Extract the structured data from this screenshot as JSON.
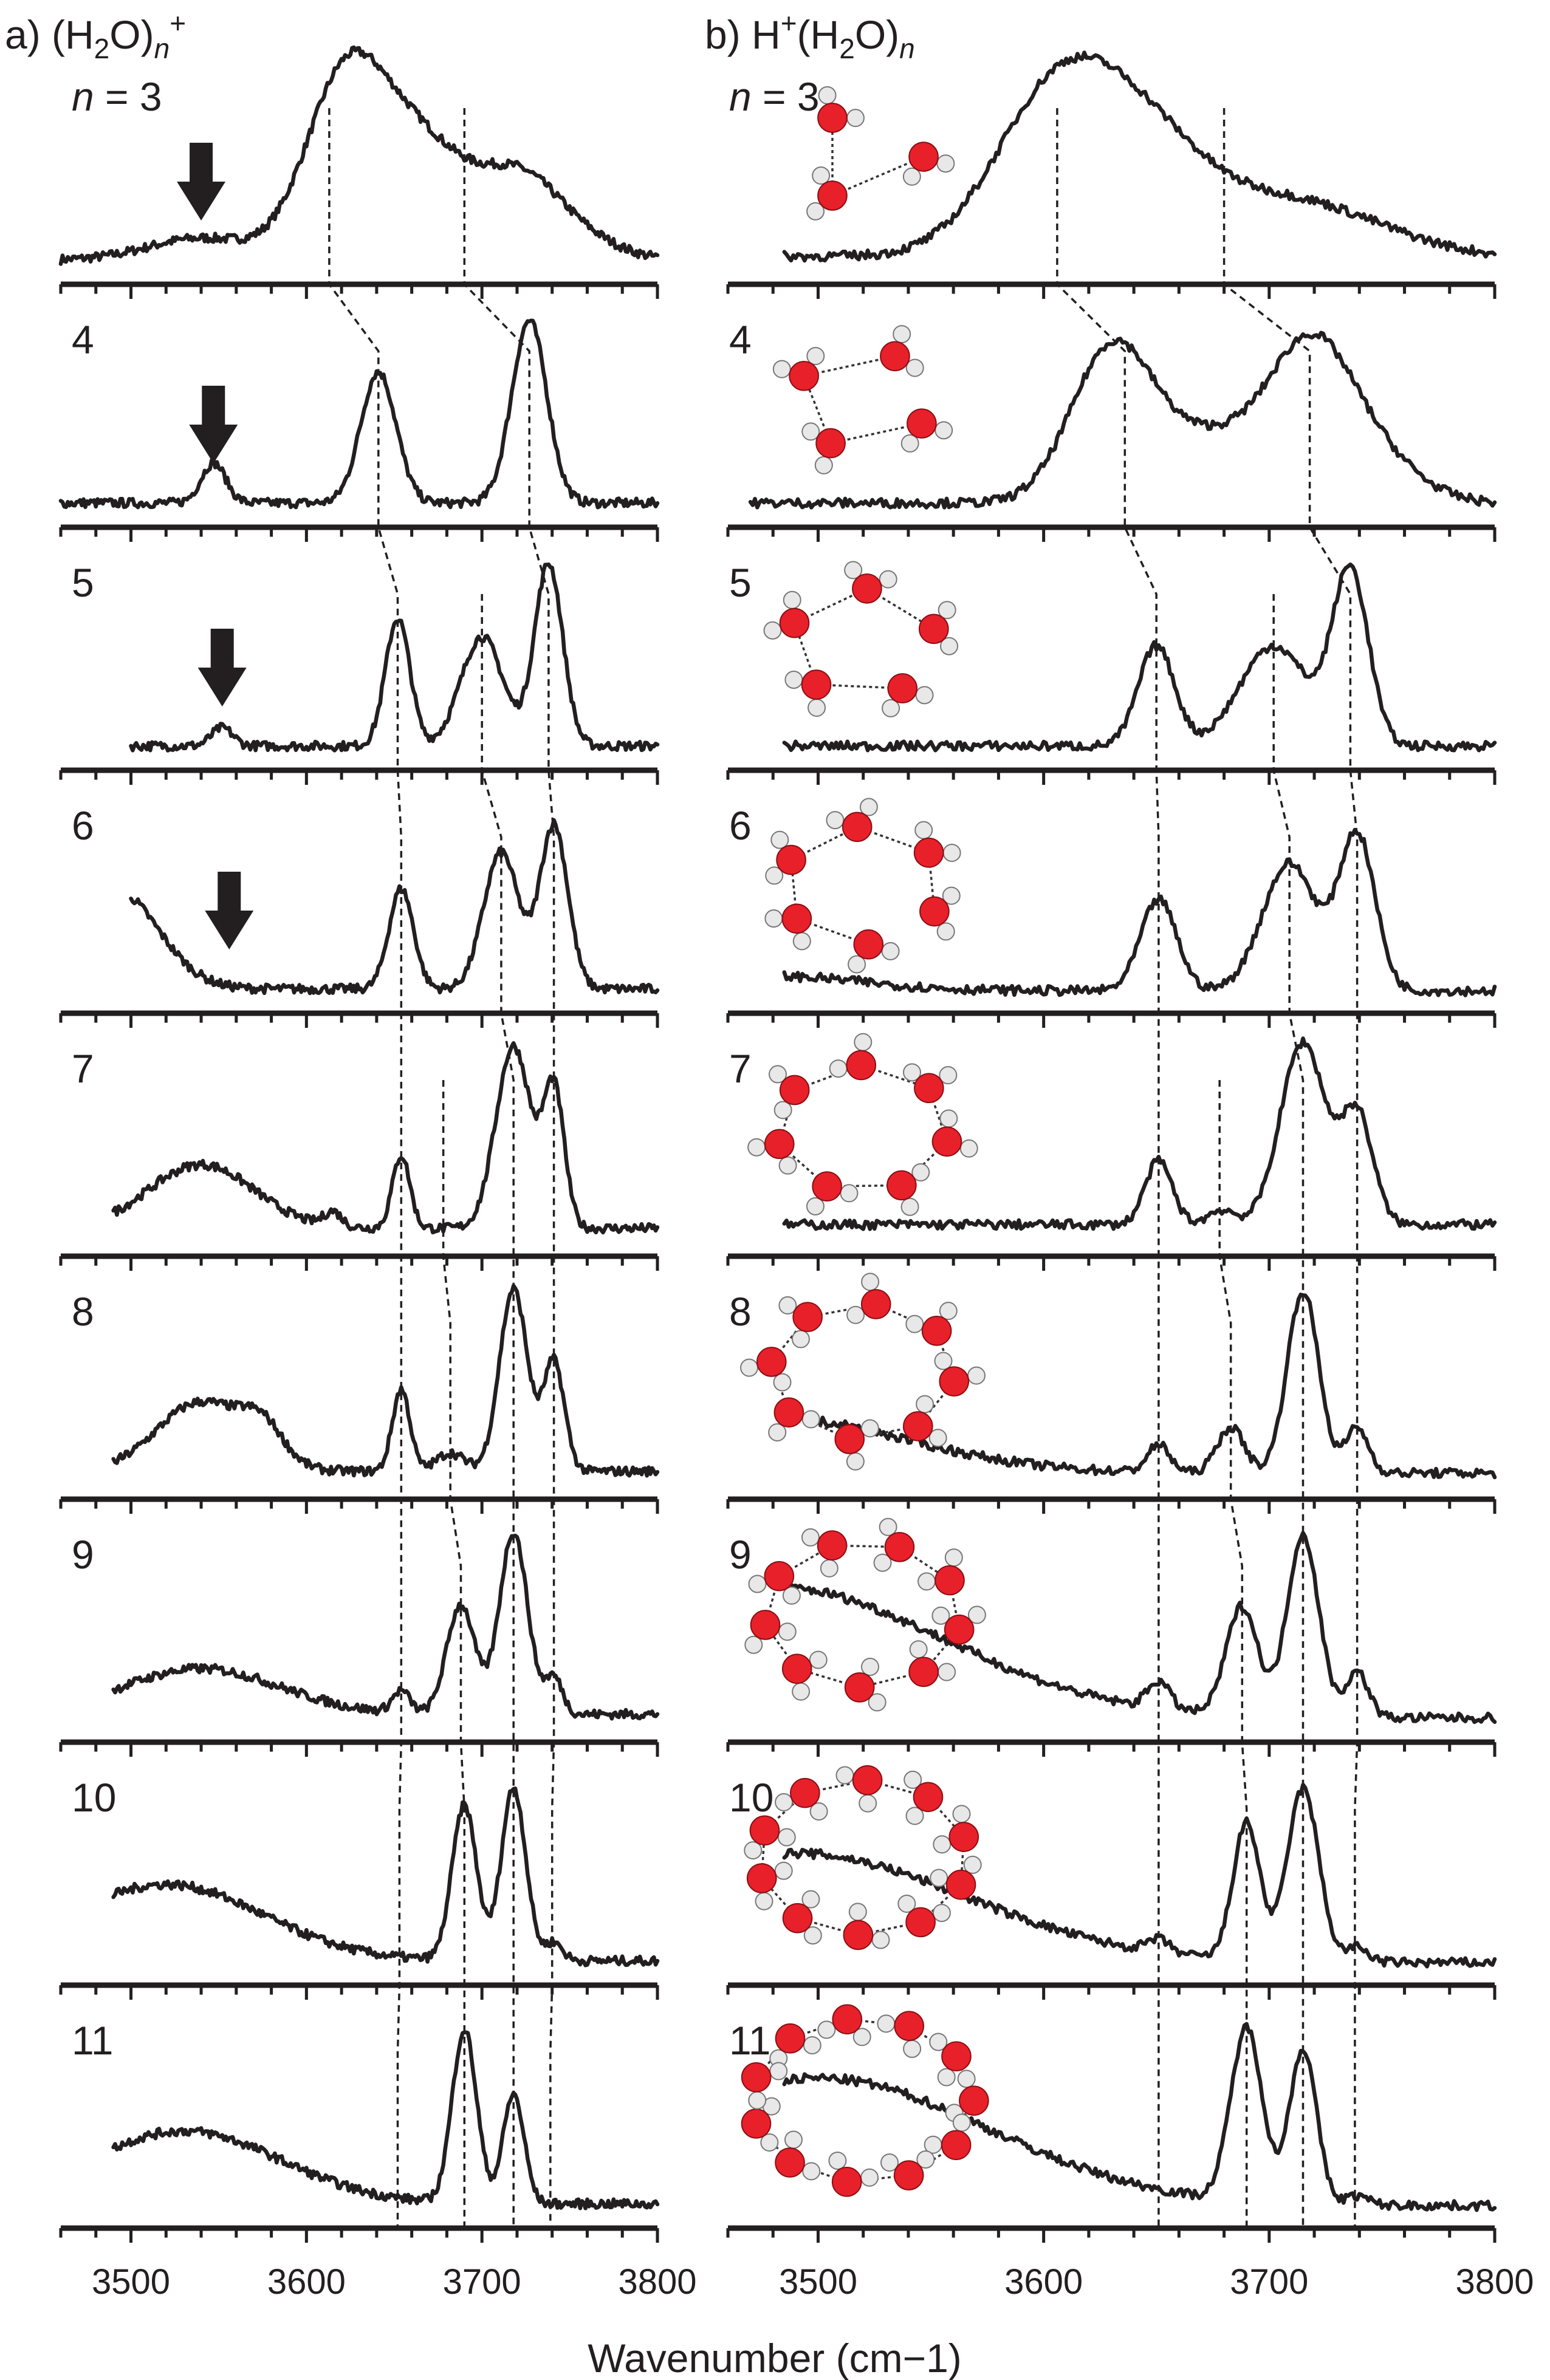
{
  "colors": {
    "ink": "#231f20",
    "oxygen": "#e8202a",
    "hydrogen": "#e8e8e8"
  },
  "chart_data": {
    "type": "line",
    "xlabel": "Wavenumber (cm−1)",
    "xlim": [
      3460,
      3800
    ],
    "x_ticks": [
      "3500",
      "3600",
      "3700",
      "3800"
    ],
    "panels": [
      {
        "id": "a",
        "prefix": "a) (H",
        "sub1": "2",
        "mid": "O)",
        "sub2": "n",
        "sup": "+",
        "arrow_markers": [
          {
            "n": "3",
            "x": 3540
          },
          {
            "n": "4",
            "x": 3547
          },
          {
            "n": "5",
            "x": 3552
          },
          {
            "n": "6",
            "x": 3556
          }
        ],
        "guide_lines": [
          [
            [
              3613,
              3
            ],
            [
              3641,
              4
            ],
            [
              3652,
              5
            ],
            [
              3654,
              6
            ],
            [
              3654,
              7
            ],
            [
              3654,
              8
            ],
            [
              3654,
              9
            ],
            [
              3653,
              10
            ],
            [
              3652,
              11
            ]
          ],
          [
            [
              3690,
              3
            ],
            [
              3727,
              4
            ],
            [
              3738,
              5
            ],
            [
              3741,
              6
            ],
            [
              3741,
              7
            ],
            [
              3741,
              8
            ],
            [
              3741,
              9
            ],
            [
              3740,
              10
            ],
            [
              3739,
              11
            ]
          ],
          [
            [
              3700,
              5
            ],
            [
              3711,
              6
            ],
            [
              3718,
              7
            ],
            [
              3718,
              8
            ],
            [
              3718,
              9
            ],
            [
              3718,
              10
            ],
            [
              3718,
              11
            ]
          ],
          [
            [
              3678,
              7
            ],
            [
              3682,
              8
            ],
            [
              3688,
              9
            ],
            [
              3690,
              10
            ],
            [
              3690,
              11
            ]
          ]
        ],
        "spectra": [
          {
            "n_label": "n = 3",
            "x_start": 3460,
            "baseline": 0.04,
            "background": [],
            "peaks": [
              [
                3540,
                0.12,
                30
              ],
              [
                3620,
                0.85,
                22
              ],
              [
                3650,
                0.45,
                25
              ],
              [
                3680,
                0.35,
                25
              ],
              [
                3720,
                0.3,
                20
              ],
              [
                3745,
                0.18,
                25
              ]
            ]
          },
          {
            "n_label": "4",
            "x_start": 3460,
            "baseline": 0.04,
            "background": [],
            "peaks": [
              [
                3547,
                0.22,
                7
              ],
              [
                3641,
                0.72,
                10
              ],
              [
                3727,
                1.0,
                10
              ]
            ]
          },
          {
            "n_label": "5",
            "x_start": 3500,
            "baseline": 0.04,
            "background": [],
            "peaks": [
              [
                3552,
                0.1,
                6
              ],
              [
                3652,
                0.7,
                7
              ],
              [
                3700,
                0.6,
                12
              ],
              [
                3738,
                1.0,
                8
              ]
            ]
          },
          {
            "n_label": "6",
            "x_start": 3500,
            "baseline": 0.04,
            "background": [
              [
                3490,
                0.55,
                25
              ]
            ],
            "peaks": [
              [
                3654,
                0.55,
                7
              ],
              [
                3711,
                0.75,
                10
              ],
              [
                3741,
                0.9,
                8
              ]
            ]
          },
          {
            "n_label": "7",
            "x_start": 3490,
            "baseline": 0.06,
            "background": [
              [
                3540,
                0.35,
                30
              ]
            ],
            "peaks": [
              [
                3615,
                0.08,
                5
              ],
              [
                3654,
                0.4,
                5
              ],
              [
                3718,
                1.0,
                10
              ],
              [
                3741,
                0.75,
                6
              ]
            ]
          },
          {
            "n_label": "8",
            "x_start": 3490,
            "baseline": 0.06,
            "background": [
              [
                3540,
                0.38,
                25
              ],
              [
                3575,
                0.18,
                12
              ]
            ],
            "peaks": [
              [
                3654,
                0.45,
                5
              ],
              [
                3682,
                0.1,
                8
              ],
              [
                3718,
                1.0,
                8
              ],
              [
                3741,
                0.6,
                6
              ]
            ]
          },
          {
            "n_label": "9",
            "x_start": 3490,
            "baseline": 0.06,
            "background": [
              [
                3540,
                0.25,
                45
              ]
            ],
            "peaks": [
              [
                3654,
                0.12,
                5
              ],
              [
                3688,
                0.6,
                8
              ],
              [
                3718,
                1.0,
                8
              ],
              [
                3741,
                0.2,
                5
              ]
            ]
          },
          {
            "n_label": "10",
            "x_start": 3490,
            "baseline": 0.04,
            "background": [
              [
                3520,
                0.42,
                55
              ]
            ],
            "peaks": [
              [
                3690,
                0.85,
                7
              ],
              [
                3718,
                0.95,
                7
              ],
              [
                3741,
                0.1,
                5
              ]
            ]
          },
          {
            "n_label": "11",
            "x_start": 3490,
            "baseline": 0.04,
            "background": [
              [
                3530,
                0.4,
                55
              ]
            ],
            "peaks": [
              [
                3690,
                0.95,
                7
              ],
              [
                3718,
                0.6,
                6
              ]
            ]
          }
        ]
      },
      {
        "id": "b",
        "prefix": "b) H",
        "sub1": "",
        "mid": "(H",
        "sub2": "n",
        "sup": "+",
        "mid_sub": "2",
        "tail": "O)",
        "arrow_markers": [],
        "guide_lines": [
          [
            [
              3606,
              3
            ],
            [
              3636,
              4
            ],
            [
              3650,
              5
            ],
            [
              3651,
              6
            ],
            [
              3651,
              7
            ],
            [
              3651,
              8
            ],
            [
              3651,
              9
            ],
            [
              3651,
              10
            ],
            [
              3651,
              11
            ]
          ],
          [
            [
              3680,
              3
            ],
            [
              3718,
              4
            ],
            [
              3736,
              5
            ],
            [
              3739,
              6
            ],
            [
              3739,
              7
            ],
            [
              3739,
              8
            ],
            [
              3739,
              9
            ],
            [
              3738,
              10
            ],
            [
              3738,
              11
            ]
          ],
          [
            [
              3702,
              5
            ],
            [
              3709,
              6
            ],
            [
              3715,
              7
            ],
            [
              3715,
              8
            ],
            [
              3715,
              9
            ],
            [
              3715,
              10
            ],
            [
              3715,
              11
            ]
          ],
          [
            [
              3678,
              7
            ],
            [
              3683,
              8
            ],
            [
              3688,
              9
            ],
            [
              3690,
              10
            ],
            [
              3690,
              11
            ]
          ]
        ],
        "spectra": [
          {
            "n_label": "n = 3",
            "x_start": 3485,
            "baseline": 0.06,
            "background": [],
            "peaks": [
              [
                3608,
                0.95,
                28
              ],
              [
                3650,
                0.45,
                25
              ],
              [
                3700,
                0.25,
                30
              ],
              [
                3740,
                0.12,
                30
              ]
            ]
          },
          {
            "n_label": "4",
            "x_start": 3470,
            "baseline": 0.04,
            "background": [],
            "peaks": [
              [
                3630,
                0.82,
                18
              ],
              [
                3675,
                0.35,
                25
              ],
              [
                3718,
                0.75,
                18
              ],
              [
                3745,
                0.25,
                20
              ]
            ]
          },
          {
            "n_label": "5",
            "x_start": 3485,
            "baseline": 0.04,
            "background": [],
            "peaks": [
              [
                3650,
                0.55,
                8
              ],
              [
                3702,
                0.55,
                15
              ],
              [
                3736,
                0.95,
                8
              ]
            ]
          },
          {
            "n_label": "6",
            "x_start": 3485,
            "baseline": 0.03,
            "background": [
              [
                3480,
                0.08,
                40
              ]
            ],
            "peaks": [
              [
                3651,
                0.5,
                8
              ],
              [
                3709,
                0.7,
                12
              ],
              [
                3739,
                0.85,
                8
              ]
            ]
          },
          {
            "n_label": "7",
            "x_start": 3485,
            "baseline": 0.08,
            "background": [],
            "peaks": [
              [
                3651,
                0.35,
                6
              ],
              [
                3679,
                0.08,
                6
              ],
              [
                3715,
                1.0,
                10
              ],
              [
                3739,
                0.6,
                7
              ]
            ]
          },
          {
            "n_label": "8",
            "x_start": 3485,
            "baseline": 0.05,
            "background": [
              [
                3480,
                0.3,
                60
              ]
            ],
            "peaks": [
              [
                3651,
                0.15,
                5
              ],
              [
                3683,
                0.25,
                6
              ],
              [
                3715,
                1.0,
                7
              ],
              [
                3739,
                0.25,
                5
              ]
            ]
          },
          {
            "n_label": "9",
            "x_start": 3485,
            "baseline": 0.04,
            "background": [
              [
                3480,
                0.72,
                75
              ]
            ],
            "peaks": [
              [
                3651,
                0.15,
                5
              ],
              [
                3688,
                0.6,
                7
              ],
              [
                3715,
                1.0,
                7
              ],
              [
                3739,
                0.25,
                5
              ]
            ]
          },
          {
            "n_label": "10",
            "x_start": 3485,
            "baseline": 0.03,
            "background": [
              [
                3490,
                0.6,
                75
              ]
            ],
            "peaks": [
              [
                3651,
                0.07,
                5
              ],
              [
                3690,
                0.75,
                6
              ],
              [
                3715,
                0.95,
                7
              ],
              [
                3739,
                0.08,
                5
              ]
            ]
          },
          {
            "n_label": "11",
            "x_start": 3485,
            "baseline": 0.03,
            "background": [
              [
                3500,
                0.7,
                75
              ]
            ],
            "peaks": [
              [
                3690,
                0.95,
                7
              ],
              [
                3715,
                0.85,
                6
              ],
              [
                3739,
                0.05,
                5
              ]
            ]
          }
        ]
      }
    ]
  }
}
